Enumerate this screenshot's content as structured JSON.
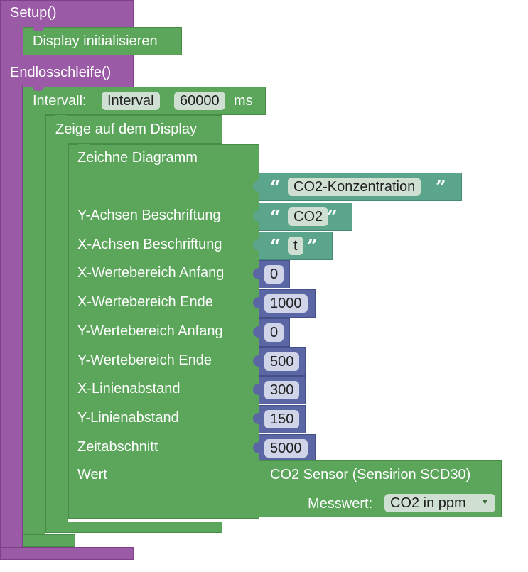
{
  "setup": {
    "label": "Setup()",
    "display_init": "Display initialisieren"
  },
  "loop": {
    "label": "Endlosschleife()",
    "interval": {
      "label": "Intervall:",
      "name": "Interval",
      "value": "60000",
      "unit": "ms"
    },
    "show_display": "Zeige auf dem Display",
    "diagram": {
      "label": "Zeichne Diagramm",
      "title": "CO2-Konzentration",
      "rows": [
        {
          "label": "Y-Achsen Beschriftung",
          "value": "CO2",
          "kind": "text"
        },
        {
          "label": "X-Achsen Beschriftung",
          "value": "t",
          "kind": "text"
        },
        {
          "label": "X-Wertebereich Anfang",
          "value": "0",
          "kind": "number"
        },
        {
          "label": "X-Wertebereich Ende",
          "value": "1000",
          "kind": "number"
        },
        {
          "label": "Y-Wertebereich Anfang",
          "value": "0",
          "kind": "number"
        },
        {
          "label": "Y-Wertebereich Ende",
          "value": "500",
          "kind": "number"
        },
        {
          "label": "X-Linienabstand",
          "value": "300",
          "kind": "number"
        },
        {
          "label": "Y-Linienabstand",
          "value": "150",
          "kind": "number"
        },
        {
          "label": "Zeitabschnitt",
          "value": "5000",
          "kind": "number"
        }
      ],
      "value_label": "Wert",
      "sensor": {
        "label": "CO2 Sensor (Sensirion SCD30)",
        "measure_label": "Messwert:",
        "measure_value": "CO2 in ppm",
        "dropdown_icon": "triangle-down-icon"
      }
    }
  },
  "colors": {
    "purple": "#9a5aa6",
    "green": "#5ba65b",
    "teal": "#5ba58c",
    "navy": "#5b67a5"
  }
}
